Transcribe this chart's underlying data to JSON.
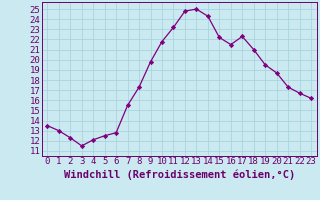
{
  "x": [
    0,
    1,
    2,
    3,
    4,
    5,
    6,
    7,
    8,
    9,
    10,
    11,
    12,
    13,
    14,
    15,
    16,
    17,
    18,
    19,
    20,
    21,
    22,
    23
  ],
  "y": [
    13.5,
    13.0,
    12.3,
    11.5,
    12.1,
    12.5,
    12.8,
    15.5,
    17.3,
    19.8,
    21.8,
    23.2,
    24.8,
    25.0,
    24.3,
    22.2,
    21.5,
    22.3,
    21.0,
    19.5,
    18.7,
    17.3,
    16.7,
    16.2
  ],
  "line_color": "#800080",
  "marker": "D",
  "marker_size": 2.2,
  "bg_color": "#cbe9f0",
  "grid_color": "#aad4dc",
  "xlabel": "Windchill (Refroidissement éolien,°C)",
  "ylabel_ticks": [
    11,
    12,
    13,
    14,
    15,
    16,
    17,
    18,
    19,
    20,
    21,
    22,
    23,
    24,
    25
  ],
  "xlim": [
    -0.5,
    23.5
  ],
  "ylim": [
    10.5,
    25.7
  ],
  "xlabel_fontsize": 7.5,
  "tick_fontsize": 6.5,
  "text_color": "#6a006a"
}
